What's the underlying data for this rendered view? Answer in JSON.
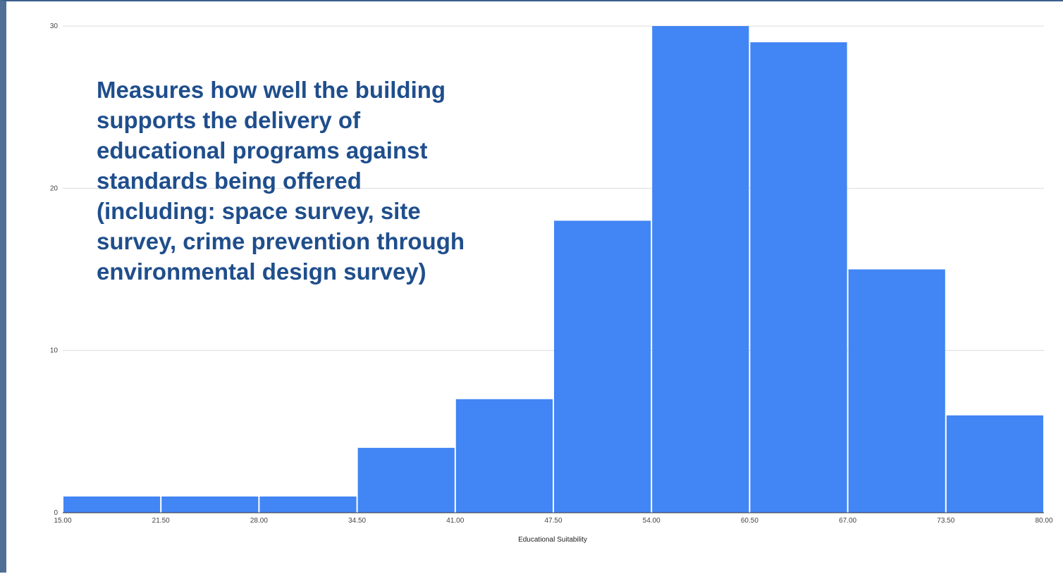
{
  "chart_data": {
    "type": "bar",
    "title": "",
    "xlabel": "Educational Suitability",
    "ylabel": "",
    "xlim": [
      15.0,
      80.0
    ],
    "ylim": [
      0,
      30
    ],
    "y_ticks": [
      0,
      10,
      20,
      30
    ],
    "x_ticks": [
      "15.00",
      "21.50",
      "28.00",
      "34.50",
      "41.00",
      "47.50",
      "54.00",
      "60.50",
      "67.00",
      "73.50",
      "80.00"
    ],
    "bins": [
      {
        "start": 15.0,
        "end": 21.5,
        "value": 1
      },
      {
        "start": 21.5,
        "end": 28.0,
        "value": 1
      },
      {
        "start": 28.0,
        "end": 34.5,
        "value": 1
      },
      {
        "start": 34.5,
        "end": 41.0,
        "value": 4
      },
      {
        "start": 41.0,
        "end": 47.5,
        "value": 7
      },
      {
        "start": 47.5,
        "end": 54.0,
        "value": 18
      },
      {
        "start": 54.0,
        "end": 60.5,
        "value": 30
      },
      {
        "start": 60.5,
        "end": 67.0,
        "value": 29
      },
      {
        "start": 67.0,
        "end": 73.5,
        "value": 15
      },
      {
        "start": 73.5,
        "end": 80.0,
        "value": 6
      }
    ],
    "bar_color": "#4285f4",
    "grid": true,
    "annotation": "Measures how well the building supports the delivery of educational programs against standards being offered (including: space survey, site survey, crime prevention through environmental design survey)"
  }
}
